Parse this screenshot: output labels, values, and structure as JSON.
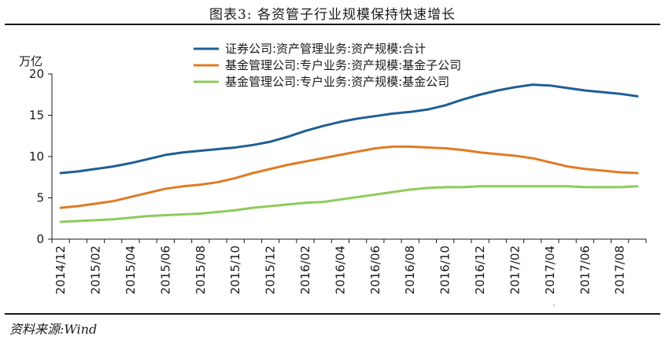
{
  "figure": {
    "title": "图表3:  各资管子行业规模保持快速增长",
    "source": "资料来源:Wind",
    "watermark": "·"
  },
  "chart_data": {
    "type": "line",
    "title": "",
    "ylabel": "万亿",
    "xlabel": "",
    "ylim": [
      0,
      20
    ],
    "yticks": [
      0,
      5,
      10,
      15,
      20
    ],
    "grid": false,
    "legend_position": "top-right",
    "x_tick_labels": [
      "2014/12",
      "2015/02",
      "2015/04",
      "2015/06",
      "2015/08",
      "2015/10",
      "2015/12",
      "2016/02",
      "2016/04",
      "2016/06",
      "2016/08",
      "2016/10",
      "2016/12",
      "2017/02",
      "2017/04",
      "2017/06",
      "2017/08"
    ],
    "x": [
      "2014/12",
      "2015/01",
      "2015/02",
      "2015/03",
      "2015/04",
      "2015/05",
      "2015/06",
      "2015/07",
      "2015/08",
      "2015/09",
      "2015/10",
      "2015/11",
      "2015/12",
      "2016/01",
      "2016/02",
      "2016/03",
      "2016/04",
      "2016/05",
      "2016/06",
      "2016/07",
      "2016/08",
      "2016/09",
      "2016/10",
      "2016/11",
      "2016/12",
      "2017/01",
      "2017/02",
      "2017/03",
      "2017/04",
      "2017/05",
      "2017/06",
      "2017/07",
      "2017/08",
      "2017/09"
    ],
    "series": [
      {
        "name": "证券公司:资产管理业务:资产规模:合计",
        "color": "#1f5f95",
        "values": [
          8.0,
          8.2,
          8.5,
          8.8,
          9.2,
          9.7,
          10.2,
          10.5,
          10.7,
          10.9,
          11.1,
          11.4,
          11.8,
          12.4,
          13.1,
          13.7,
          14.2,
          14.6,
          14.9,
          15.2,
          15.4,
          15.7,
          16.2,
          16.9,
          17.5,
          18.0,
          18.4,
          18.7,
          18.6,
          18.3,
          18.0,
          17.8,
          17.6,
          17.3
        ]
      },
      {
        "name": "基金管理公司:专户业务:资产规模:基金子公司",
        "color": "#e07b24",
        "values": [
          3.8,
          4.0,
          4.3,
          4.6,
          5.1,
          5.6,
          6.1,
          6.4,
          6.6,
          6.9,
          7.4,
          8.0,
          8.5,
          9.0,
          9.4,
          9.8,
          10.2,
          10.6,
          11.0,
          11.2,
          11.2,
          11.1,
          11.0,
          10.8,
          10.5,
          10.3,
          10.1,
          9.8,
          9.3,
          8.8,
          8.5,
          8.3,
          8.1,
          8.0
        ]
      },
      {
        "name": "基金管理公司:专户业务:资产规模:基金公司",
        "color": "#8ecb5a",
        "values": [
          2.1,
          2.2,
          2.3,
          2.4,
          2.6,
          2.8,
          2.9,
          3.0,
          3.1,
          3.3,
          3.5,
          3.8,
          4.0,
          4.2,
          4.4,
          4.5,
          4.8,
          5.1,
          5.4,
          5.7,
          6.0,
          6.2,
          6.3,
          6.3,
          6.4,
          6.4,
          6.4,
          6.4,
          6.4,
          6.4,
          6.3,
          6.3,
          6.3,
          6.4
        ]
      }
    ]
  }
}
